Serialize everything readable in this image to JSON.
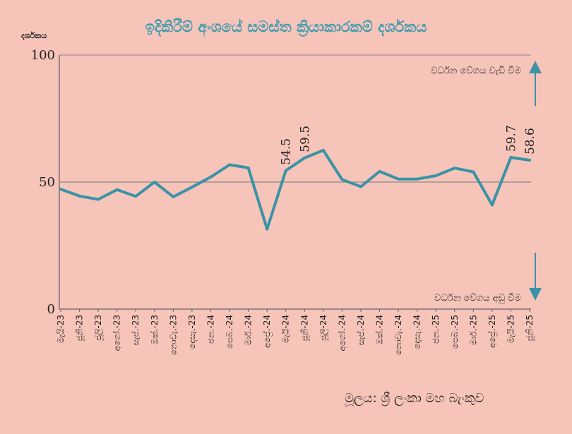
{
  "chart_data": {
    "type": "line",
    "title": "ඉදිකිරීම් අංශයේ සමස්ත ක්‍රියාකාරකම් දර්ශකය",
    "ylabel": "දර්ශකය",
    "ylim": [
      0,
      100
    ],
    "yticks": [
      0,
      50,
      100
    ],
    "reference_line": 50,
    "grid": false,
    "categories": [
      "මැයි-23",
      "ජූනි-23",
      "ජූලි-23",
      "අගෝ.-23",
      "සැප්.-23",
      "ඔක්.-23",
      "නොවැ.-23",
      "දෙසැ.-23",
      "ජන.-24",
      "පෙබ.-24",
      "මාර්.-24",
      "අප්‍රේ.-24",
      "මැයි-24",
      "ජූනි-24",
      "ජූලි-24",
      "අගෝ.-24",
      "සැප්.-24",
      "ඔක්.-24",
      "නොවැ.-24",
      "දෙසැ.-24",
      "ජන.-25",
      "පෙබ.-25",
      "මාර්.-25",
      "අප්‍රේ.-25",
      "මැයි-25",
      "ජූනි-25"
    ],
    "series": [
      {
        "name": "",
        "color": "#3a93a6",
        "values": [
          47.2,
          44.5,
          43.2,
          47.0,
          44.4,
          50.0,
          44.2,
          48.0,
          52.0,
          56.8,
          55.6,
          31.5,
          54.5,
          59.5,
          62.5,
          51.0,
          48.2,
          54.2,
          51.2,
          51.2,
          52.5,
          55.5,
          54.0,
          41.0,
          59.7,
          58.6
        ]
      }
    ],
    "data_labels": [
      {
        "index": 12,
        "text": "54.5"
      },
      {
        "index": 13,
        "text": "59.5"
      },
      {
        "index": 24,
        "text": "59.7"
      },
      {
        "index": 25,
        "text": "58.6"
      }
    ],
    "annotations": {
      "up": "වර්ධන වේගය වැඩි වීම",
      "down": "වර්ධන වේගය අඩු වීම"
    },
    "source": "මූලය: ශ්‍රී ලංකා මහ බැංකුව",
    "colors": {
      "background": "#f7c4b9",
      "line": "#3a93a6",
      "axis": "#666666",
      "title": "#3e9bb0",
      "arrow": "#3a93a6"
    }
  }
}
